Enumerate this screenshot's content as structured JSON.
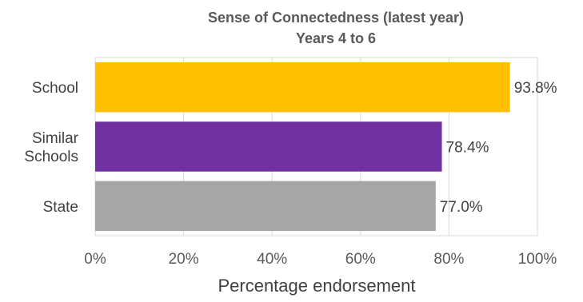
{
  "chart_data": {
    "type": "bar",
    "orientation": "horizontal",
    "title": [
      "Sense of Connectedness (latest year)",
      "Years 4 to 6"
    ],
    "categories": [
      [
        "School"
      ],
      [
        "Similar",
        "Schools"
      ],
      [
        "State"
      ]
    ],
    "values": [
      93.8,
      78.4,
      77.0
    ],
    "data_labels": [
      "93.8%",
      "78.4%",
      "77.0%"
    ],
    "colors": [
      "#FFC000",
      "#7030A0",
      "#A6A6A6"
    ],
    "xlabel": "Percentage endorsement",
    "xlim": [
      0,
      100
    ],
    "xticks": [
      0,
      20,
      40,
      60,
      80,
      100
    ],
    "xtick_labels": [
      "0%",
      "20%",
      "40%",
      "60%",
      "80%",
      "100%"
    ],
    "grid": true
  }
}
